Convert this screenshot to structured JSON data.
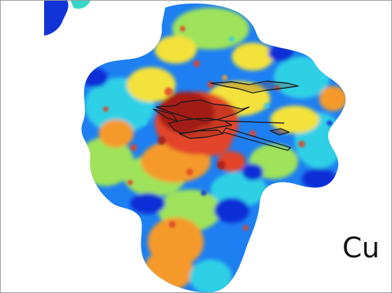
{
  "image": {
    "element_label": "Cu",
    "colormap": [
      "#0b2dd6",
      "#1d7ff2",
      "#2fd0e6",
      "#9fe35a",
      "#f3e23a",
      "#f59a2a",
      "#e2452a",
      "#a81d12"
    ],
    "trace_color": "#1a1a1a"
  }
}
